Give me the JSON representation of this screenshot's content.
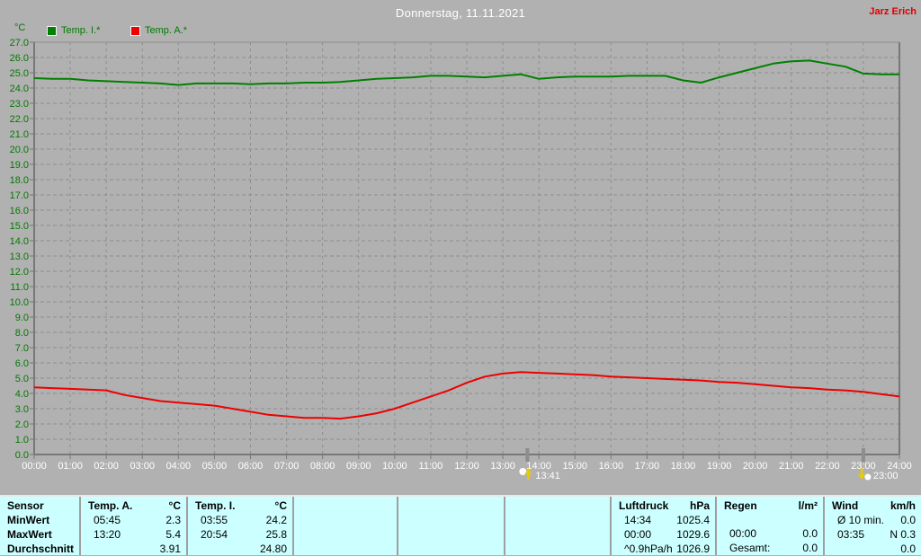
{
  "header": {
    "title": "Donnerstag, 11.11.2021",
    "owner": "Jarz Erich"
  },
  "chart_data": {
    "type": "line",
    "title": "Donnerstag, 11.11.2021",
    "grid": "dashed",
    "background_color": "#b1b1b1",
    "y_axis": {
      "unit": "°C",
      "min": 0,
      "max": 27,
      "step": 1,
      "label_color": "#007a00"
    },
    "x_axis": {
      "min": 0,
      "max": 24,
      "step": 1,
      "label_color": "#ffffff",
      "labels": [
        "00:00",
        "01:00",
        "02:00",
        "03:00",
        "04:00",
        "05:00",
        "06:00",
        "07:00",
        "08:00",
        "09:00",
        "10:00",
        "11:00",
        "12:00",
        "13:00",
        "14:00",
        "15:00",
        "16:00",
        "17:00",
        "18:00",
        "19:00",
        "20:00",
        "21:00",
        "22:00",
        "23:00",
        "24:00"
      ]
    },
    "legend": [
      {
        "label": "Temp. I.*",
        "color": "#008000"
      },
      {
        "label": "Temp. A.*",
        "color": "#ee0000"
      }
    ],
    "x_hours": [
      0,
      0.5,
      1,
      1.5,
      2,
      2.5,
      3,
      3.5,
      4,
      4.5,
      5,
      5.5,
      6,
      6.5,
      7,
      7.5,
      8,
      8.5,
      9,
      9.5,
      10,
      10.5,
      11,
      11.5,
      12,
      12.5,
      13,
      13.5,
      14,
      14.5,
      15,
      15.5,
      16,
      16.5,
      17,
      17.5,
      18,
      18.5,
      19,
      19.5,
      20,
      20.5,
      21,
      21.5,
      22,
      22.5,
      23,
      23.5,
      24
    ],
    "series": [
      {
        "name": "Temp. I.*",
        "color": "#008000",
        "values": [
          24.65,
          24.6,
          24.6,
          24.5,
          24.45,
          24.4,
          24.35,
          24.3,
          24.2,
          24.3,
          24.3,
          24.3,
          24.25,
          24.3,
          24.3,
          24.35,
          24.35,
          24.4,
          24.5,
          24.6,
          24.65,
          24.7,
          24.8,
          24.8,
          24.75,
          24.7,
          24.8,
          24.9,
          24.6,
          24.7,
          24.75,
          24.75,
          24.75,
          24.8,
          24.8,
          24.8,
          24.5,
          24.35,
          24.7,
          25.0,
          25.3,
          25.6,
          25.75,
          25.8,
          25.6,
          25.4,
          24.95,
          24.9,
          24.9
        ]
      },
      {
        "name": "Temp. A.*",
        "color": "#ee0000",
        "values": [
          4.4,
          4.35,
          4.3,
          4.25,
          4.2,
          3.9,
          3.7,
          3.5,
          3.4,
          3.3,
          3.2,
          3.0,
          2.8,
          2.6,
          2.5,
          2.4,
          2.4,
          2.35,
          2.5,
          2.7,
          3.0,
          3.4,
          3.8,
          4.2,
          4.7,
          5.1,
          5.3,
          5.4,
          5.35,
          5.3,
          5.25,
          5.2,
          5.1,
          5.05,
          5.0,
          4.95,
          4.9,
          4.85,
          4.75,
          4.7,
          4.6,
          4.5,
          4.4,
          4.35,
          4.25,
          4.2,
          4.1,
          3.95,
          3.8
        ]
      }
    ],
    "markers": [
      {
        "type": "moonrise",
        "time": "13:41",
        "hour": 13.68
      },
      {
        "type": "moonset",
        "time": "23:00",
        "hour": 23.0
      }
    ]
  },
  "summary_table": {
    "row_labels": [
      "Sensor",
      "MinWert",
      "MaxWert",
      "Durchschnitt"
    ],
    "sections": [
      {
        "name": "Temp. A.",
        "unit": "°C",
        "rows": [
          [
            "05:45",
            "2.3"
          ],
          [
            "13:20",
            "5.4"
          ],
          [
            "",
            "3.91"
          ]
        ]
      },
      {
        "name": "Temp. I.",
        "unit": "°C",
        "rows": [
          [
            "03:55",
            "24.2"
          ],
          [
            "20:54",
            "25.8"
          ],
          [
            "",
            "24.80"
          ]
        ]
      },
      {
        "name": "",
        "unit": "",
        "rows": [
          [
            "",
            ""
          ],
          [
            "",
            ""
          ],
          [
            "",
            ""
          ]
        ]
      },
      {
        "name": "",
        "unit": "",
        "rows": [
          [
            "",
            ""
          ],
          [
            "",
            ""
          ],
          [
            "",
            ""
          ]
        ]
      },
      {
        "name": "",
        "unit": "",
        "rows": [
          [
            "",
            ""
          ],
          [
            "",
            ""
          ],
          [
            "",
            ""
          ]
        ]
      },
      {
        "name": "Luftdruck",
        "unit": "hPa",
        "rows": [
          [
            "14:34",
            "1025.4"
          ],
          [
            "00:00",
            "1029.6"
          ],
          [
            "^0.9hPa/h",
            "1026.9"
          ]
        ]
      },
      {
        "name": "Regen",
        "unit": "l/m²",
        "rows": [
          [
            "",
            ""
          ],
          [
            "00:00",
            "0.0"
          ],
          [
            "Gesamt:",
            "0.0"
          ]
        ]
      },
      {
        "name": "Wind",
        "unit": "km/h",
        "rows": [
          [
            "Ø 10 min.",
            "0.0"
          ],
          [
            "03:35",
            "N 0.3"
          ],
          [
            "",
            "0.0"
          ]
        ]
      }
    ]
  },
  "colors": {
    "background": "#b1b1b1",
    "grid": "#8d8d8d",
    "axis": "#787878",
    "y_label": "#007a00",
    "x_label": "#ffffff",
    "title_text": "#ffffff",
    "owner_text": "#dd0000",
    "table_background": "#ccffff",
    "table_divider": "#9f9f9f",
    "marker_icon_moon": "#ffffff",
    "marker_icon_arrow": "#e8cc00"
  }
}
